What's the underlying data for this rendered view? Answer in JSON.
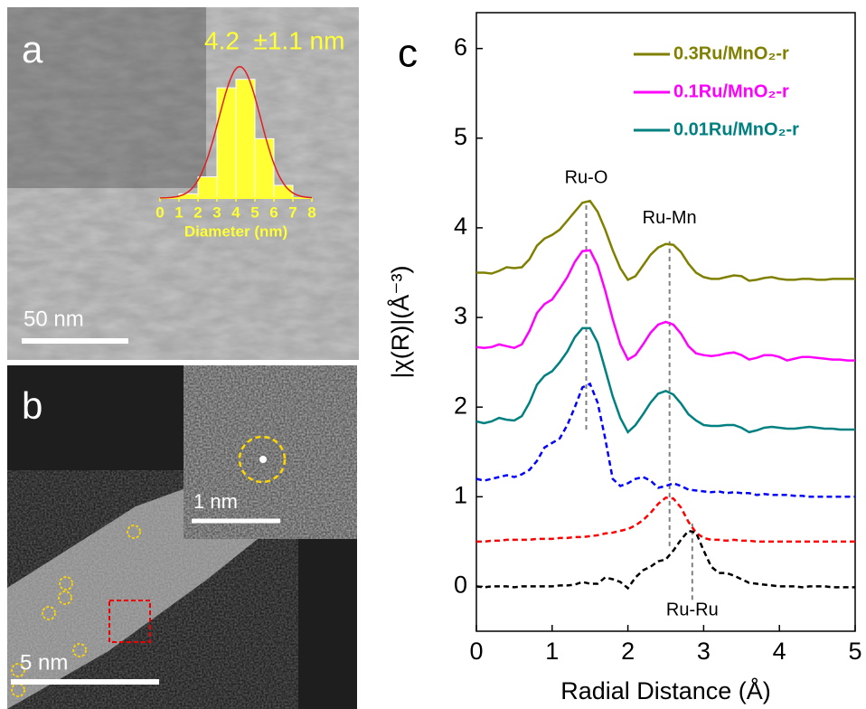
{
  "panels": {
    "a": {
      "label": "a",
      "scale_bar": "50 nm"
    },
    "b": {
      "label": "b",
      "scale_bar": "5 nm",
      "inset_scale_bar": "1 nm"
    },
    "c": {
      "label": "c"
    }
  },
  "chart_data": [
    {
      "type": "histogram",
      "title": "4.2  ±1.1 nm",
      "x_label": "Diameter (nm)",
      "bins": [
        0,
        1,
        2,
        3,
        4,
        5,
        6,
        7,
        8
      ],
      "values": [
        0,
        1,
        5,
        26,
        28,
        14,
        3,
        0
      ],
      "color": "#ffff33",
      "xlim": [
        0,
        8
      ],
      "ylim": [
        0,
        32
      ],
      "xticks": [
        0,
        1,
        2,
        3,
        4,
        5,
        6,
        7,
        8
      ],
      "fit": {
        "mean": 4.2,
        "sd": 1.1,
        "peak": 31,
        "color": "#e02020"
      }
    },
    {
      "type": "line",
      "x_label": "Radial Distance (Å)",
      "y_label": "|χ(R)|(Å⁻³)",
      "x": [
        0,
        0.1,
        0.2,
        0.3,
        0.4,
        0.5,
        0.6,
        0.7,
        0.8,
        0.9,
        1,
        1.1,
        1.2,
        1.3,
        1.4,
        1.5,
        1.6,
        1.7,
        1.8,
        1.9,
        2,
        2.1,
        2.2,
        2.3,
        2.4,
        2.5,
        2.6,
        2.7,
        2.8,
        2.9,
        3,
        3.1,
        3.2,
        3.3,
        3.4,
        3.5,
        3.6,
        3.7,
        3.8,
        3.9,
        4,
        4.1,
        4.2,
        4.3,
        4.4,
        4.5,
        4.6,
        4.7,
        4.8,
        4.9,
        5
      ],
      "series": [
        {
          "name": "0.3Ru/MnO₂-r",
          "color": "#808000",
          "dash": false,
          "values": [
            3.5,
            3.5,
            3.49,
            3.52,
            3.56,
            3.55,
            3.56,
            3.65,
            3.8,
            3.88,
            3.92,
            3.98,
            4.08,
            4.18,
            4.28,
            4.3,
            4.18,
            3.98,
            3.75,
            3.55,
            3.42,
            3.46,
            3.58,
            3.7,
            3.78,
            3.82,
            3.81,
            3.73,
            3.6,
            3.5,
            3.45,
            3.43,
            3.43,
            3.45,
            3.47,
            3.46,
            3.41,
            3.42,
            3.44,
            3.45,
            3.43,
            3.42,
            3.42,
            3.43,
            3.43,
            3.42,
            3.42,
            3.43,
            3.43,
            3.43,
            3.43
          ]
        },
        {
          "name": "0.1Ru/MnO₂-r",
          "color": "#ff00ff",
          "dash": false,
          "values": [
            2.67,
            2.66,
            2.67,
            2.7,
            2.68,
            2.66,
            2.7,
            2.85,
            3.05,
            3.15,
            3.2,
            3.32,
            3.45,
            3.62,
            3.74,
            3.75,
            3.58,
            3.3,
            2.98,
            2.7,
            2.53,
            2.58,
            2.7,
            2.83,
            2.92,
            2.95,
            2.92,
            2.82,
            2.68,
            2.6,
            2.58,
            2.57,
            2.58,
            2.6,
            2.61,
            2.58,
            2.53,
            2.55,
            2.58,
            2.58,
            2.56,
            2.52,
            2.54,
            2.56,
            2.56,
            2.55,
            2.54,
            2.53,
            2.53,
            2.52,
            2.52
          ]
        },
        {
          "name": "0.01Ru/MnO₂-r",
          "color": "#008080",
          "dash": false,
          "values": [
            1.84,
            1.82,
            1.84,
            1.88,
            1.86,
            1.85,
            1.9,
            2.05,
            2.25,
            2.35,
            2.4,
            2.5,
            2.62,
            2.78,
            2.88,
            2.88,
            2.72,
            2.42,
            2.12,
            1.88,
            1.72,
            1.8,
            1.92,
            2.05,
            2.15,
            2.18,
            2.14,
            2.04,
            1.92,
            1.85,
            1.8,
            1.79,
            1.79,
            1.8,
            1.8,
            1.77,
            1.72,
            1.74,
            1.77,
            1.78,
            1.77,
            1.76,
            1.76,
            1.77,
            1.78,
            1.77,
            1.76,
            1.76,
            1.75,
            1.75,
            1.75
          ]
        },
        {
          "color": "#0000ff",
          "dash": true,
          "values": [
            1.2,
            1.18,
            1.2,
            1.22,
            1.24,
            1.22,
            1.25,
            1.3,
            1.4,
            1.55,
            1.6,
            1.65,
            1.8,
            2.0,
            2.22,
            2.26,
            2.05,
            1.65,
            1.2,
            1.12,
            1.15,
            1.2,
            1.22,
            1.18,
            1.1,
            1.12,
            1.15,
            1.12,
            1.08,
            1.07,
            1.06,
            1.05,
            1.06,
            1.04,
            1.05,
            1.04,
            1.04,
            1.02,
            1.03,
            1.02,
            1.02,
            1.02,
            1.01,
            1.01,
            1.0,
            1.0,
            1.0,
            1.0,
            1.0,
            1.0,
            1.0
          ]
        },
        {
          "color": "#ff0000",
          "dash": true,
          "values": [
            0.5,
            0.5,
            0.51,
            0.51,
            0.52,
            0.52,
            0.52,
            0.52,
            0.53,
            0.53,
            0.53,
            0.54,
            0.54,
            0.55,
            0.55,
            0.56,
            0.57,
            0.59,
            0.6,
            0.62,
            0.64,
            0.68,
            0.74,
            0.82,
            0.92,
            0.99,
            0.98,
            0.88,
            0.72,
            0.6,
            0.54,
            0.52,
            0.52,
            0.51,
            0.52,
            0.51,
            0.51,
            0.5,
            0.5,
            0.5,
            0.5,
            0.5,
            0.5,
            0.5,
            0.5,
            0.5,
            0.5,
            0.5,
            0.5,
            0.5,
            0.5
          ]
        },
        {
          "color": "#000000",
          "dash": true,
          "values": [
            0.0,
            -0.01,
            0.0,
            0.0,
            0.0,
            -0.01,
            0.0,
            0.0,
            0.0,
            0.0,
            0.0,
            0.01,
            0.01,
            0.02,
            0.05,
            0.03,
            0.03,
            0.1,
            0.08,
            0.05,
            -0.02,
            0.1,
            0.18,
            0.22,
            0.28,
            0.3,
            0.4,
            0.52,
            0.62,
            0.6,
            0.4,
            0.22,
            0.15,
            0.15,
            0.12,
            0.08,
            0.04,
            0.03,
            0.02,
            0.01,
            0.0,
            0.0,
            0.0,
            -0.01,
            0.0,
            0.0,
            0.0,
            -0.01,
            -0.01,
            -0.01,
            -0.01
          ]
        }
      ],
      "annotations": [
        {
          "text": "Ru-O",
          "x": 1.45,
          "y": [
            1.75,
            4.3
          ],
          "position": "above"
        },
        {
          "text": "Ru-Mn",
          "x": 2.55,
          "y": [
            0.45,
            3.85
          ],
          "position": "above"
        },
        {
          "text": "Ru-Ru",
          "x": 2.85,
          "y": [
            -0.15,
            0.7
          ],
          "position": "below"
        }
      ],
      "xlim": [
        0,
        5
      ],
      "ylim": [
        -0.5,
        6.4
      ],
      "xticks": [
        0,
        1,
        2,
        3,
        4,
        5
      ],
      "yticks": [
        0,
        1,
        2,
        3,
        4,
        5,
        6
      ],
      "legend": "upper right"
    }
  ]
}
